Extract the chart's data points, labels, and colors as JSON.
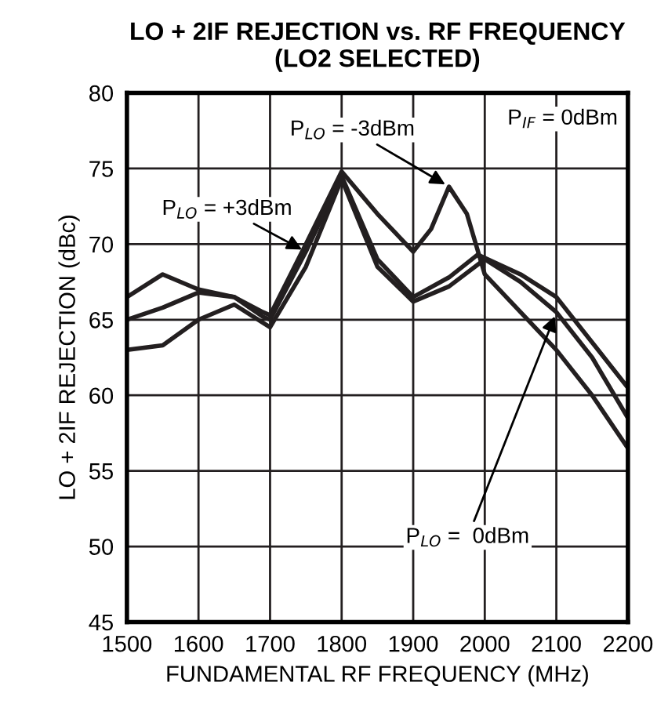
{
  "chart_data": {
    "type": "line",
    "title": "LO + 2IF REJECTION vs. RF FREQUENCY\n(LO2 SELECTED)",
    "xlabel": "FUNDAMENTAL RF FREQUENCY (MHz)",
    "ylabel": "LO + 2IF REJECTION (dBc)",
    "annotations": [
      "P$_{IF}$ = 0dBm"
    ],
    "series": [
      {
        "name": "P$_{LO}$ = -3dBm",
        "color": "#231f20",
        "x": [
          1500,
          1550,
          1600,
          1650,
          1690,
          1700,
          1750,
          1800,
          1850,
          1900,
          1925,
          1950,
          1975,
          2000,
          2050,
          2100,
          2150,
          2200
        ],
        "values": [
          66.5,
          68,
          67,
          66.5,
          65.5,
          65.3,
          70,
          74.8,
          72,
          69.5,
          71,
          73.8,
          72,
          68,
          65.5,
          63,
          60,
          56.5
        ]
      },
      {
        "name": "P$_{LO}$ = +3dBm",
        "color": "#231f20",
        "x": [
          1500,
          1550,
          1600,
          1650,
          1690,
          1700,
          1750,
          1800,
          1850,
          1900,
          1950,
          1990,
          2050,
          2100,
          2150,
          2200
        ],
        "values": [
          65,
          65.8,
          66.8,
          66.5,
          65.2,
          65,
          69.5,
          74.5,
          69,
          66.5,
          67.8,
          69.3,
          68,
          66.5,
          63.5,
          60.5
        ]
      },
      {
        "name": "P$_{LO}$ =  0dBm",
        "color": "#231f20",
        "x": [
          1500,
          1550,
          1600,
          1650,
          1690,
          1700,
          1750,
          1800,
          1850,
          1900,
          1950,
          2000,
          2050,
          2100,
          2150,
          2200
        ],
        "values": [
          63,
          63.3,
          65,
          66,
          64.8,
          64.5,
          68.5,
          74.3,
          68.5,
          66.2,
          67.2,
          69,
          67.5,
          65.5,
          62.5,
          58.5
        ]
      }
    ],
    "xlim": [
      1500,
      2200
    ],
    "xticks": [
      1500,
      1600,
      1700,
      1800,
      1900,
      2000,
      2100,
      2200
    ],
    "ylim": [
      45,
      80
    ],
    "yticks": [
      45,
      50,
      55,
      60,
      65,
      70,
      75,
      80
    ],
    "grid": true,
    "legend": false,
    "marker": "none",
    "line_style": "solid"
  }
}
